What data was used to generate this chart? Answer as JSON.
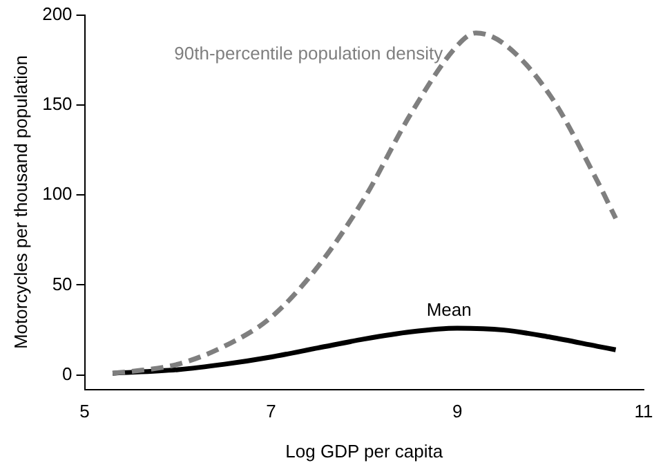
{
  "chart_data": {
    "type": "line",
    "xlabel": "Log GDP per capita",
    "ylabel": "Motorcycles per thousand population",
    "xlim": [
      5,
      11
    ],
    "xticks": [
      5,
      7,
      9,
      11
    ],
    "ylim": [
      -8,
      200
    ],
    "yticks": [
      0,
      50,
      100,
      150,
      200
    ],
    "grid": false,
    "legend": false,
    "marker": "none",
    "series": [
      {
        "name": "90th-percentile population density",
        "color": "#7f7f7f",
        "line_style": "dashed",
        "x": [
          5.3,
          5.5,
          6,
          6.5,
          7,
          7.5,
          8,
          8.5,
          9,
          9.2,
          9.5,
          10,
          10.5,
          10.7
        ],
        "values": [
          1,
          2,
          6,
          16,
          32,
          60,
          98,
          145,
          183,
          190,
          184,
          155,
          108,
          87
        ]
      },
      {
        "name": "Mean",
        "color": "#000000",
        "line_style": "solid",
        "x": [
          5.3,
          6,
          6.5,
          7,
          7.5,
          8,
          8.5,
          9,
          9.5,
          10,
          10.5,
          10.7
        ],
        "values": [
          1,
          3,
          6,
          10,
          15,
          20,
          24,
          26,
          25,
          21,
          16,
          14
        ]
      }
    ]
  }
}
